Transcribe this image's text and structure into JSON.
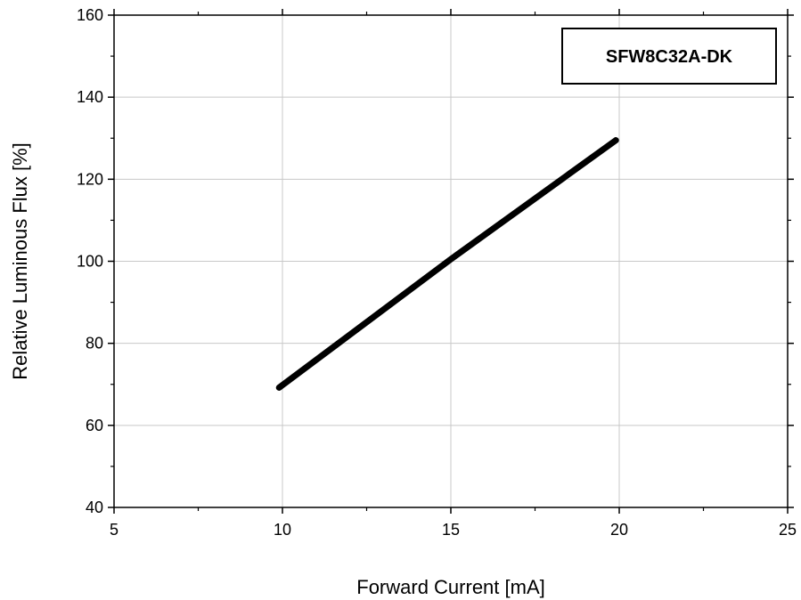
{
  "chart_data": {
    "type": "line",
    "title": "",
    "xlabel": "Forward Current [mA]",
    "ylabel": "Relative Luminous Flux [%]",
    "xlim": [
      5,
      25
    ],
    "ylim": [
      40,
      160
    ],
    "xticks": [
      5,
      10,
      15,
      20,
      25
    ],
    "yticks": [
      40,
      60,
      80,
      100,
      120,
      140,
      160
    ],
    "grid": true,
    "legend_position": "top-right",
    "series": [
      {
        "name": "SFW8C32A-DK",
        "color": "#000000",
        "x": [
          9.9,
          15,
          19.9
        ],
        "y": [
          69.2,
          100.5,
          129.5
        ]
      }
    ]
  }
}
